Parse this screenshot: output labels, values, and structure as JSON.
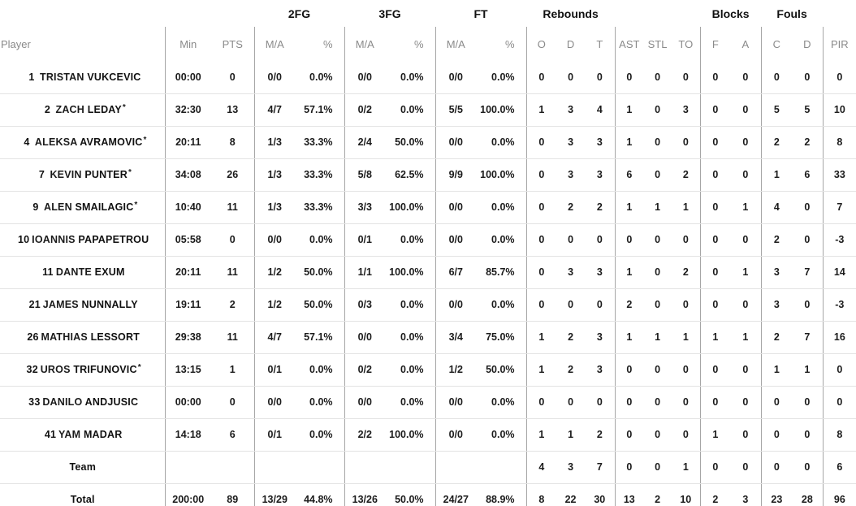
{
  "table": {
    "groups": {
      "fg2": "2FG",
      "fg3": "3FG",
      "ft": "FT",
      "rebounds": "Rebounds",
      "blocks": "Blocks",
      "fouls": "Fouls"
    },
    "headers": {
      "player": "Player",
      "min": "Min",
      "pts": "PTS",
      "ma": "M/A",
      "pct": "%",
      "reb_o": "O",
      "reb_d": "D",
      "reb_t": "T",
      "ast": "AST",
      "stl": "STL",
      "to": "TO",
      "block_f": "F",
      "block_a": "A",
      "foul_c": "C",
      "foul_d": "D",
      "pir": "PIR"
    },
    "starter_mark": "*",
    "rows": [
      {
        "type": "player",
        "num": "1",
        "first": "TRISTAN",
        "last": "VUKCEVIC",
        "starter": false,
        "cells": [
          "00:00",
          "0",
          "0/0",
          "0.0%",
          "0/0",
          "0.0%",
          "0/0",
          "0.0%",
          "0",
          "0",
          "0",
          "0",
          "0",
          "0",
          "0",
          "0",
          "0",
          "0",
          "0"
        ]
      },
      {
        "type": "player",
        "num": "2",
        "first": "ZACH",
        "last": "LEDAY",
        "starter": true,
        "cells": [
          "32:30",
          "13",
          "4/7",
          "57.1%",
          "0/2",
          "0.0%",
          "5/5",
          "100.0%",
          "1",
          "3",
          "4",
          "1",
          "0",
          "3",
          "0",
          "0",
          "5",
          "5",
          "10"
        ]
      },
      {
        "type": "player",
        "num": "4",
        "first": "ALEKSA",
        "last": "AVRAMOVIC",
        "starter": true,
        "cells": [
          "20:11",
          "8",
          "1/3",
          "33.3%",
          "2/4",
          "50.0%",
          "0/0",
          "0.0%",
          "0",
          "3",
          "3",
          "1",
          "0",
          "0",
          "0",
          "0",
          "2",
          "2",
          "8"
        ]
      },
      {
        "type": "player",
        "num": "7",
        "first": "KEVIN",
        "last": "PUNTER",
        "starter": true,
        "cells": [
          "34:08",
          "26",
          "1/3",
          "33.3%",
          "5/8",
          "62.5%",
          "9/9",
          "100.0%",
          "0",
          "3",
          "3",
          "6",
          "0",
          "2",
          "0",
          "0",
          "1",
          "6",
          "33"
        ]
      },
      {
        "type": "player",
        "num": "9",
        "first": "ALEN",
        "last": "SMAILAGIC",
        "starter": true,
        "cells": [
          "10:40",
          "11",
          "1/3",
          "33.3%",
          "3/3",
          "100.0%",
          "0/0",
          "0.0%",
          "0",
          "2",
          "2",
          "1",
          "1",
          "1",
          "0",
          "1",
          "4",
          "0",
          "7"
        ]
      },
      {
        "type": "player",
        "num": "10",
        "first": "IOANNIS",
        "last": "PAPAPETROU",
        "starter": false,
        "cells": [
          "05:58",
          "0",
          "0/0",
          "0.0%",
          "0/1",
          "0.0%",
          "0/0",
          "0.0%",
          "0",
          "0",
          "0",
          "0",
          "0",
          "0",
          "0",
          "0",
          "2",
          "0",
          "-3"
        ]
      },
      {
        "type": "player",
        "num": "11",
        "first": "DANTE",
        "last": "EXUM",
        "starter": false,
        "cells": [
          "20:11",
          "11",
          "1/2",
          "50.0%",
          "1/1",
          "100.0%",
          "6/7",
          "85.7%",
          "0",
          "3",
          "3",
          "1",
          "0",
          "2",
          "0",
          "1",
          "3",
          "7",
          "14"
        ]
      },
      {
        "type": "player",
        "num": "21",
        "first": "JAMES",
        "last": "NUNNALLY",
        "starter": false,
        "cells": [
          "19:11",
          "2",
          "1/2",
          "50.0%",
          "0/3",
          "0.0%",
          "0/0",
          "0.0%",
          "0",
          "0",
          "0",
          "2",
          "0",
          "0",
          "0",
          "0",
          "3",
          "0",
          "-3"
        ]
      },
      {
        "type": "player",
        "num": "26",
        "first": "MATHIAS",
        "last": "LESSORT",
        "starter": false,
        "cells": [
          "29:38",
          "11",
          "4/7",
          "57.1%",
          "0/0",
          "0.0%",
          "3/4",
          "75.0%",
          "1",
          "2",
          "3",
          "1",
          "1",
          "1",
          "1",
          "1",
          "2",
          "7",
          "16"
        ]
      },
      {
        "type": "player",
        "num": "32",
        "first": "UROS",
        "last": "TRIFUNOVIC",
        "starter": true,
        "cells": [
          "13:15",
          "1",
          "0/1",
          "0.0%",
          "0/2",
          "0.0%",
          "1/2",
          "50.0%",
          "1",
          "2",
          "3",
          "0",
          "0",
          "0",
          "0",
          "0",
          "1",
          "1",
          "0"
        ]
      },
      {
        "type": "player",
        "num": "33",
        "first": "DANILO",
        "last": "ANDJUSIC",
        "starter": false,
        "cells": [
          "00:00",
          "0",
          "0/0",
          "0.0%",
          "0/0",
          "0.0%",
          "0/0",
          "0.0%",
          "0",
          "0",
          "0",
          "0",
          "0",
          "0",
          "0",
          "0",
          "0",
          "0",
          "0"
        ]
      },
      {
        "type": "player",
        "num": "41",
        "first": "YAM",
        "last": "MADAR",
        "starter": false,
        "cells": [
          "14:18",
          "6",
          "0/1",
          "0.0%",
          "2/2",
          "100.0%",
          "0/0",
          "0.0%",
          "1",
          "1",
          "2",
          "0",
          "0",
          "0",
          "1",
          "0",
          "0",
          "0",
          "8"
        ]
      },
      {
        "type": "team",
        "label": "Team",
        "cells": [
          "",
          "",
          "",
          "",
          "",
          "",
          "",
          "",
          "4",
          "3",
          "7",
          "0",
          "0",
          "1",
          "0",
          "0",
          "0",
          "0",
          "6"
        ]
      },
      {
        "type": "total",
        "label": "Total",
        "cells": [
          "200:00",
          "89",
          "13/29",
          "44.8%",
          "13/26",
          "50.0%",
          "24/27",
          "88.9%",
          "8",
          "22",
          "30",
          "13",
          "2",
          "10",
          "2",
          "3",
          "23",
          "28",
          "96"
        ]
      }
    ]
  }
}
